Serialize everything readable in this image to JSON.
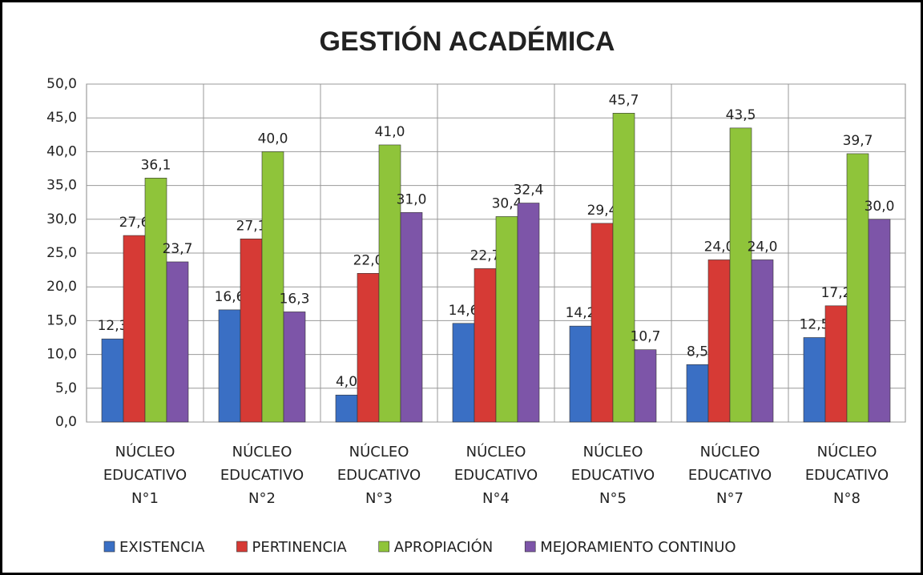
{
  "chart_data": {
    "type": "bar",
    "title": "GESTIÓN ACADÉMICA",
    "categories": [
      "NÚCLEO EDUCATIVO N°1",
      "NÚCLEO EDUCATIVO N°2",
      "NÚCLEO EDUCATIVO N°3",
      "NÚCLEO EDUCATIVO N°4",
      "NÚCLEO EDUCATIVO N°5",
      "NÚCLEO EDUCATIVO N°7",
      "NÚCLEO EDUCATIVO N°8"
    ],
    "series": [
      {
        "name": "EXISTENCIA",
        "color": "#3a6fc4",
        "values": [
          12.3,
          16.6,
          4.0,
          14.6,
          14.2,
          8.5,
          12.5
        ],
        "value_labels": [
          "12,3",
          "16,6",
          "4,0",
          "14,6",
          "14,2",
          "8,5",
          "12,5"
        ]
      },
      {
        "name": "PERTINENCIA",
        "color": "#d63a35",
        "values": [
          27.6,
          27.1,
          22.0,
          22.7,
          29.4,
          24.0,
          17.2
        ],
        "value_labels": [
          "27,6",
          "27,1",
          "22,0",
          "22,7",
          "29,4",
          "24,0",
          "17,2"
        ]
      },
      {
        "name": "APROPIACIÓN",
        "color": "#8fc43a",
        "values": [
          36.1,
          40.0,
          41.0,
          30.4,
          45.7,
          43.5,
          39.7
        ],
        "value_labels": [
          "36,1",
          "40,0",
          "41,0",
          "30,4",
          "45,7",
          "43,5",
          "39,7"
        ]
      },
      {
        "name": "MEJORAMIENTO CONTINUO",
        "color": "#7d55a8",
        "values": [
          23.7,
          16.3,
          31.0,
          32.4,
          10.7,
          24.0,
          30.0
        ],
        "value_labels": [
          "23,7",
          "16,3",
          "31,0",
          "32,4",
          "10,7",
          "24,0",
          "30,0"
        ]
      }
    ],
    "ylim": [
      0,
      50
    ],
    "yticks": [
      {
        "value": 0,
        "label": "0,0"
      },
      {
        "value": 5,
        "label": "5,0"
      },
      {
        "value": 10,
        "label": "10,0"
      },
      {
        "value": 15,
        "label": "15,0"
      },
      {
        "value": 20,
        "label": "20,0"
      },
      {
        "value": 25,
        "label": "25,0"
      },
      {
        "value": 30,
        "label": "30,0"
      },
      {
        "value": 35,
        "label": "35,0"
      },
      {
        "value": 40,
        "label": "40,0"
      },
      {
        "value": 45,
        "label": "45,0"
      },
      {
        "value": 50,
        "label": "50,0"
      }
    ],
    "grid": true,
    "legend": "bottom"
  }
}
